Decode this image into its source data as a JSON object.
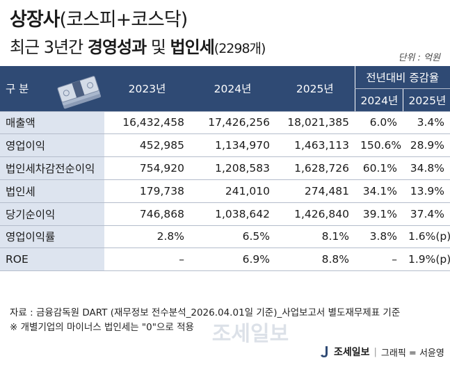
{
  "title": {
    "line1_bold": "상장사",
    "line1_rest": "(코스피+코스닥)",
    "line2_pre": "최근 3년간 ",
    "line2_bold1": "경영성과",
    "line2_mid": " 및 ",
    "line2_bold2": "법인세",
    "line2_count": "(2298개)"
  },
  "unit": "단위 : 억원",
  "table": {
    "header_label": "구 분",
    "years": [
      "2023년",
      "2024년",
      "2025년"
    ],
    "change_group": "전년대비 증감율",
    "change_years": [
      "2024년",
      "2025년"
    ],
    "rows": [
      {
        "label": "매출액",
        "v2023": "16,432,458",
        "v2024": "17,426,256",
        "v2025": "18,021,385",
        "c2024": "6.0%",
        "c2025": "3.4%"
      },
      {
        "label": "영업이익",
        "v2023": "452,985",
        "v2024": "1,134,970",
        "v2025": "1,463,113",
        "c2024": "150.6%",
        "c2025": "28.9%"
      },
      {
        "label": "법인세차감전순이익",
        "v2023": "754,920",
        "v2024": "1,208,583",
        "v2025": "1,628,726",
        "c2024": "60.1%",
        "c2025": "34.8%"
      },
      {
        "label": "법인세",
        "v2023": "179,738",
        "v2024": "241,010",
        "v2025": "274,481",
        "c2024": "34.1%",
        "c2025": "13.9%"
      },
      {
        "label": "당기순이익",
        "v2023": "746,868",
        "v2024": "1,038,642",
        "v2025": "1,426,840",
        "c2024": "39.1%",
        "c2025": "37.4%"
      },
      {
        "label": "영업이익률",
        "v2023": "2.8%",
        "v2024": "6.5%",
        "v2025": "8.1%",
        "c2024": "3.8%",
        "c2025": "1.6%(p)"
      },
      {
        "label": "ROE",
        "v2023": "–",
        "v2024": "6.9%",
        "v2025": "8.8%",
        "c2024": "–",
        "c2025": "1.9%(p)"
      }
    ]
  },
  "footer": {
    "source": "자료 : 금융감독원 DART (재무정보 전수분석_2026.04.01일 기준)_사업보고서 별도재무제표 기준",
    "note": "※ 개별기업의 마이너스 법인세는 \"0\"으로 적용"
  },
  "brand": {
    "name": "조세일보",
    "credit": "그래픽 = 서윤영",
    "watermark": "조세일보"
  }
}
